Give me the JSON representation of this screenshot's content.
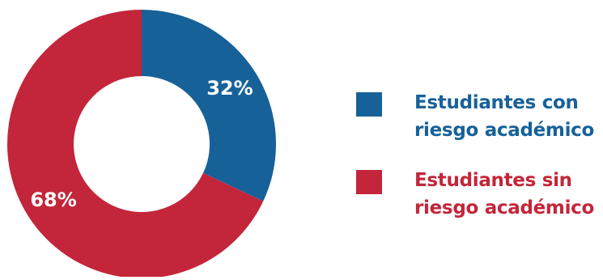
{
  "chart_data": {
    "type": "pie",
    "donut": true,
    "title": "",
    "categories": [
      "Estudiantes con riesgo académico",
      "Estudiantes sin riesgo académico"
    ],
    "values": [
      32,
      68
    ],
    "data_labels": [
      "32%",
      "68%"
    ],
    "colors": [
      "#176199",
      "#c3263a"
    ],
    "legend_placement": "right"
  },
  "legend": {
    "items": [
      {
        "label_line1": "Estudiantes con",
        "label_line2": "riesgo académico",
        "color": "#176199"
      },
      {
        "label_line1": "Estudiantes sin",
        "label_line2": "riesgo académico",
        "color": "#c3263a"
      }
    ]
  }
}
